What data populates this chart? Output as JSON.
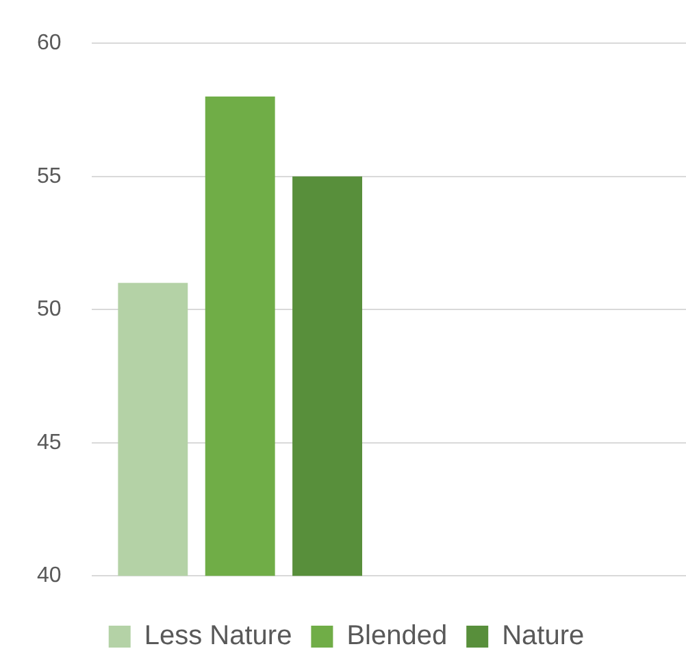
{
  "chart_data": {
    "type": "bar",
    "categories": [
      null,
      null
    ],
    "series": [
      {
        "name": "Less Nature",
        "color": "#b4d2a6",
        "values": [
          51,
          null
        ]
      },
      {
        "name": "Blended",
        "color": "#70ad47",
        "values": [
          58,
          null
        ]
      },
      {
        "name": "Nature",
        "color": "#588f3b",
        "values": [
          55,
          null
        ]
      }
    ],
    "ylim": [
      40,
      60
    ],
    "yticks": [
      40,
      45,
      50,
      55,
      60
    ],
    "grid": "y",
    "legend": "bottom"
  }
}
